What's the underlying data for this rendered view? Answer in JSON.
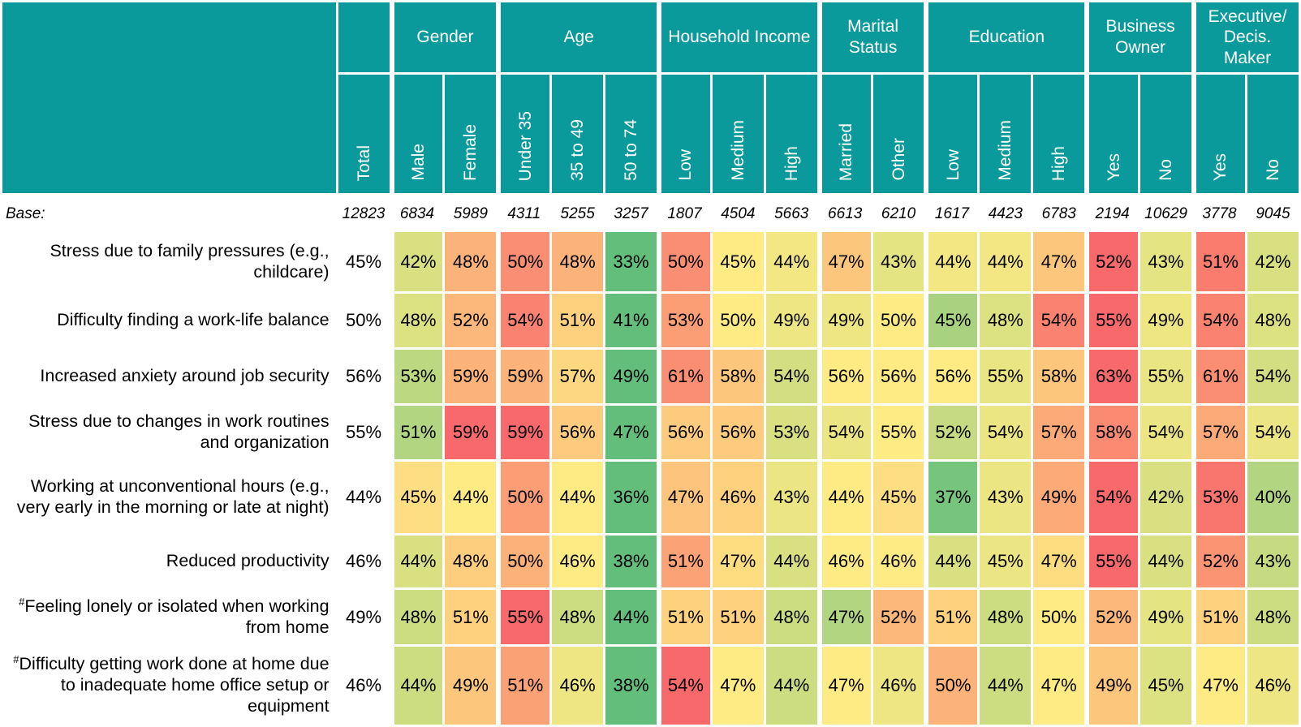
{
  "colors": {
    "header_teal": "#0b9a9b",
    "header_text": "#ffffff",
    "body_text": "#000000",
    "scale_min_green": "#63BE7B",
    "scale_mid_yellow": "#FFEB84",
    "scale_max_red": "#F8696B"
  },
  "chart_data": {
    "type": "heatmap",
    "title": "",
    "unit": "%",
    "column_groups": [
      {
        "label": "",
        "columns": [
          "Total"
        ]
      },
      {
        "label": "Gender",
        "columns": [
          "Male",
          "Female"
        ]
      },
      {
        "label": "Age",
        "columns": [
          "Under 35",
          "35 to 49",
          "50 to 74"
        ]
      },
      {
        "label": "Household Income",
        "columns": [
          "Low",
          "Medium",
          "High"
        ]
      },
      {
        "label": "Marital Status",
        "columns": [
          "Married",
          "Other"
        ]
      },
      {
        "label": "Education",
        "columns": [
          "Low",
          "Medium",
          "High"
        ]
      },
      {
        "label": "Business Owner",
        "columns": [
          "Yes",
          "No"
        ]
      },
      {
        "label": "Executive/ Decis. Maker",
        "columns": [
          "Yes",
          "No"
        ]
      }
    ],
    "base_label": "Base:",
    "base": [
      12823,
      6834,
      5989,
      4311,
      5255,
      3257,
      1807,
      4504,
      5663,
      6613,
      6210,
      1617,
      4423,
      6783,
      2194,
      10629,
      3778,
      9045
    ],
    "rows": [
      {
        "prefix": "",
        "label": "Stress due to family pressures (e.g., childcare)",
        "values": [
          45,
          42,
          48,
          50,
          48,
          33,
          50,
          45,
          44,
          47,
          43,
          44,
          44,
          47,
          52,
          43,
          51,
          42
        ]
      },
      {
        "prefix": "",
        "label": "Difficulty finding a work-life balance",
        "values": [
          50,
          48,
          52,
          54,
          51,
          41,
          53,
          50,
          49,
          49,
          50,
          45,
          48,
          54,
          55,
          49,
          54,
          48
        ]
      },
      {
        "prefix": "",
        "label": "Increased anxiety around job security",
        "values": [
          56,
          53,
          59,
          59,
          57,
          49,
          61,
          58,
          54,
          56,
          56,
          56,
          55,
          58,
          63,
          55,
          61,
          54
        ]
      },
      {
        "prefix": "",
        "label": "Stress due to changes in work routines and organization",
        "values": [
          55,
          51,
          59,
          59,
          56,
          47,
          56,
          56,
          53,
          54,
          55,
          52,
          54,
          57,
          58,
          54,
          57,
          54
        ]
      },
      {
        "prefix": "",
        "label": "Working at unconventional hours (e.g., very early in the morning or late at night)",
        "values": [
          44,
          45,
          44,
          50,
          44,
          36,
          47,
          46,
          43,
          44,
          45,
          37,
          43,
          49,
          54,
          42,
          53,
          40
        ]
      },
      {
        "prefix": "",
        "label": "Reduced productivity",
        "values": [
          46,
          44,
          48,
          50,
          46,
          38,
          51,
          47,
          44,
          46,
          46,
          44,
          45,
          47,
          55,
          44,
          52,
          43
        ]
      },
      {
        "prefix": "#",
        "label": "Feeling lonely or isolated when working from home",
        "values": [
          49,
          48,
          51,
          55,
          48,
          44,
          51,
          51,
          48,
          47,
          52,
          51,
          48,
          50,
          52,
          49,
          51,
          48
        ]
      },
      {
        "prefix": "#",
        "label": "Difficulty getting work done at home due to inadequate home office setup or equipment",
        "values": [
          46,
          44,
          49,
          51,
          46,
          38,
          54,
          47,
          44,
          47,
          46,
          50,
          44,
          47,
          49,
          45,
          47,
          46
        ]
      }
    ],
    "color_scale": {
      "description": "3-color scale applied per row across demographic columns; Total column uncolored",
      "min_color": "#63BE7B",
      "mid_color": "#FFEB84",
      "max_color": "#F8696B",
      "midpoint": "median"
    }
  }
}
